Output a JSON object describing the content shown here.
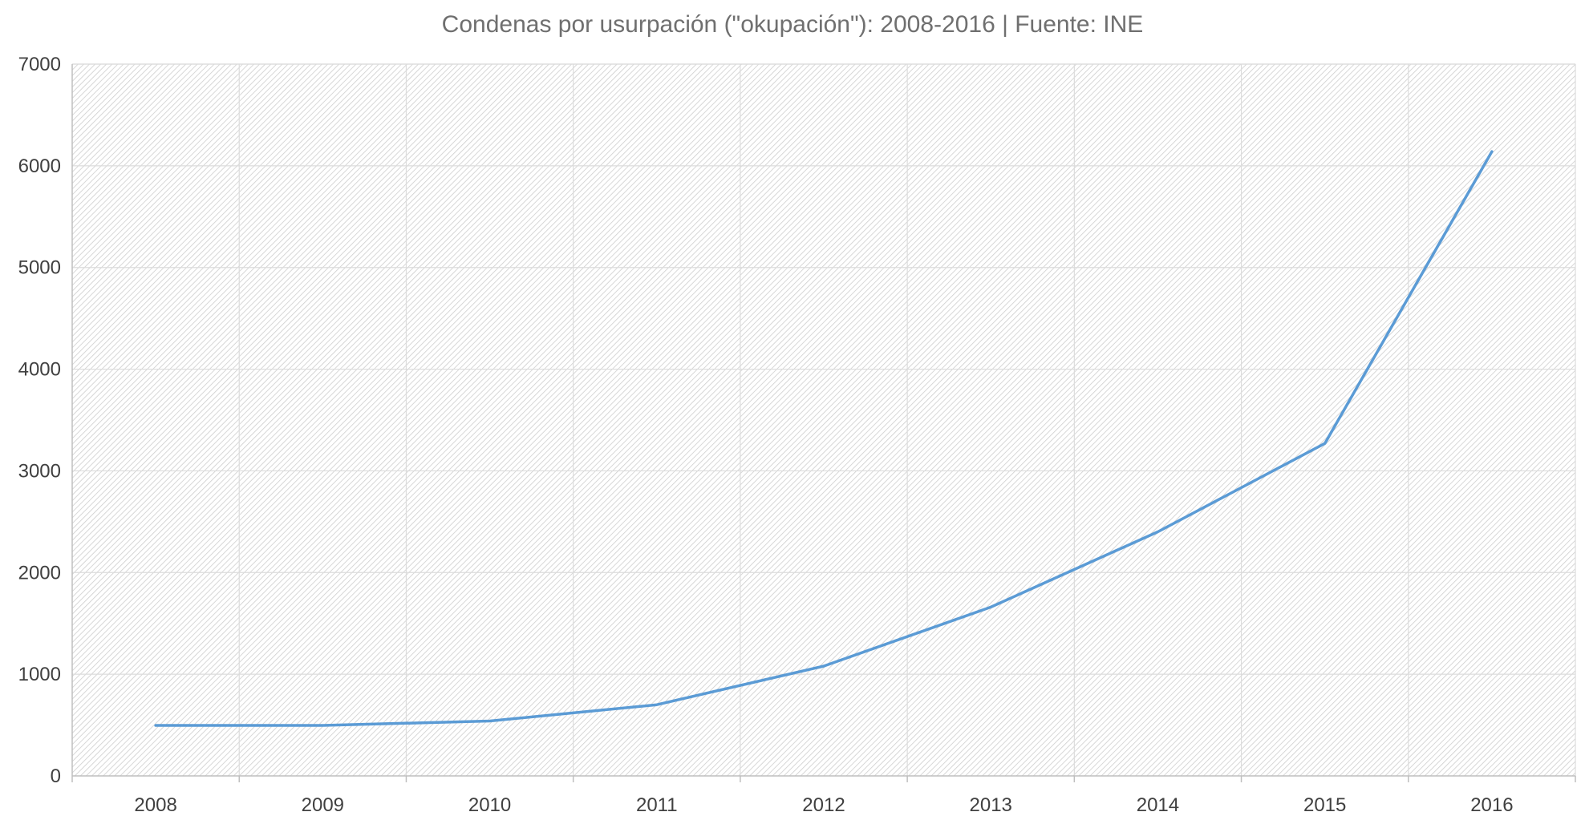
{
  "chart_data": {
    "type": "line",
    "title": "Condenas por usurpación (\"okupación\"): 2008-2016 | Fuente: INE",
    "xlabel": "",
    "ylabel": "",
    "categories": [
      "2008",
      "2009",
      "2010",
      "2011",
      "2012",
      "2013",
      "2014",
      "2015",
      "2016"
    ],
    "series": [
      {
        "values": [
          497,
          497,
          540,
          700,
          1080,
          1660,
          2400,
          3270,
          6140
        ],
        "color": "#5b9bd5"
      }
    ],
    "ylim": [
      0,
      7000
    ],
    "yticks": [
      "0",
      "1000",
      "2000",
      "3000",
      "4000",
      "5000",
      "6000",
      "7000"
    ],
    "grid": true,
    "legend": "none",
    "plot_background": "hatched-gray"
  }
}
